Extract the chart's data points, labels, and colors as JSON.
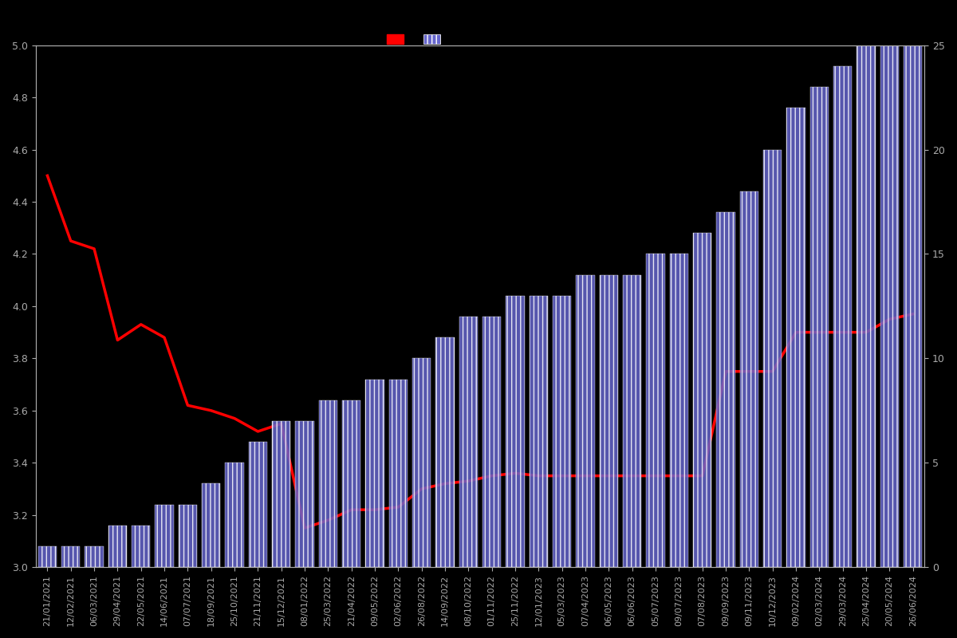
{
  "background_color": "#000000",
  "title": "",
  "left_yaxis": {
    "min": 3.0,
    "max": 5.0,
    "ticks": [
      3.0,
      3.2,
      3.4,
      3.6,
      3.8,
      4.0,
      4.2,
      4.4,
      4.6,
      4.8,
      5.0
    ]
  },
  "right_yaxis": {
    "min": 0,
    "max": 25,
    "ticks": [
      0,
      5,
      10,
      15,
      20,
      25
    ]
  },
  "bar_color": "#6666cc",
  "bar_edge_color": "#ffffff",
  "line_color": "#ff0000",
  "line_width": 2.5,
  "dates": [
    "21/01/2021",
    "12/02/2021",
    "06/03/2021",
    "29/04/2021",
    "22/05/2021",
    "14/06/2021",
    "07/07/2021",
    "18/09/2021",
    "25/10/2021",
    "21/11/2021",
    "15/12/2021",
    "08/01/2022",
    "25/03/2022",
    "21/04/2022",
    "09/05/2022",
    "02/06/2022",
    "26/08/2022",
    "14/09/2022",
    "08/10/2022",
    "01/11/2022",
    "25/11/2022",
    "12/01/2023",
    "05/03/2023",
    "07/04/2023",
    "06/05/2023",
    "06/06/2023",
    "05/07/2023",
    "09/07/2023",
    "07/08/2023",
    "09/09/2023",
    "09/11/2023",
    "10/12/2023",
    "09/02/2024",
    "02/03/2024",
    "29/03/2024",
    "25/04/2024",
    "20/05/2024",
    "26/06/2024"
  ],
  "bar_values": [
    1,
    1,
    1,
    2,
    2,
    3,
    3,
    4,
    5,
    6,
    7,
    7,
    8,
    8,
    9,
    9,
    10,
    11,
    12,
    12,
    13,
    13,
    13,
    14,
    14,
    14,
    15,
    15,
    16,
    17,
    18,
    20,
    22,
    23,
    24,
    25,
    25,
    25
  ],
  "line_values": [
    4.5,
    4.25,
    4.22,
    3.87,
    3.93,
    3.88,
    3.62,
    3.6,
    3.57,
    3.52,
    3.55,
    3.15,
    3.18,
    3.22,
    3.22,
    3.23,
    3.3,
    3.32,
    3.33,
    3.35,
    3.36,
    3.35,
    3.35,
    3.35,
    3.35,
    3.35,
    3.35,
    3.35,
    3.35,
    3.75,
    3.75,
    3.75,
    3.9,
    3.9,
    3.9,
    3.9,
    3.95,
    3.97
  ],
  "tick_fontsize": 9,
  "axis_color": "#aaaaaa",
  "legend_labels": [
    "",
    ""
  ],
  "figsize": [
    12,
    8
  ],
  "dpi": 100
}
